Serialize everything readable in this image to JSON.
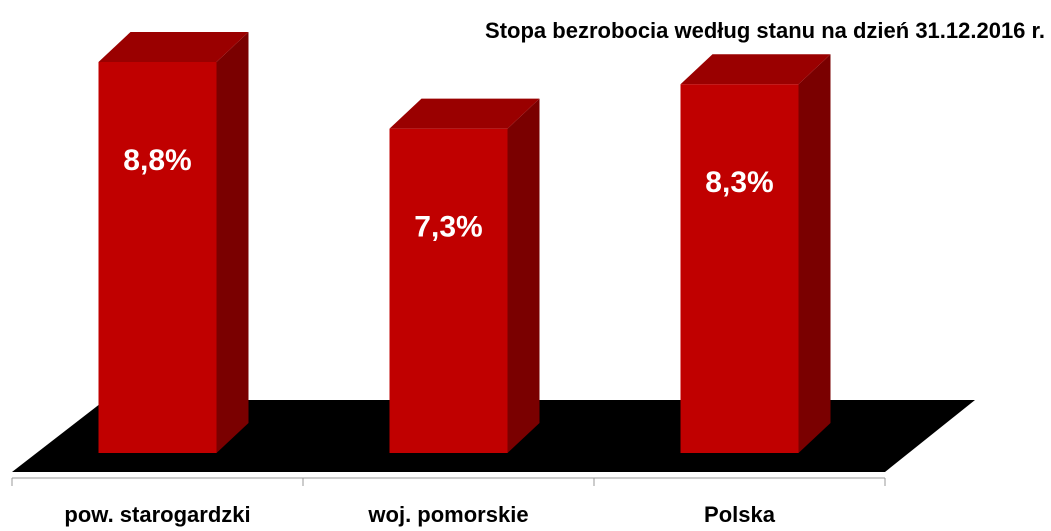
{
  "chart_data": {
    "type": "bar3d",
    "title": "Stopa bezrobocia według  stanu na dzień 31.12.2016 r.",
    "categories": [
      "pow. starogardzki",
      "woj. pomorskie",
      "Polska"
    ],
    "values": [
      8.8,
      7.3,
      8.3
    ],
    "value_labels": [
      "8,8%",
      "7,3%",
      "8,3%"
    ],
    "color": "#c00000"
  }
}
